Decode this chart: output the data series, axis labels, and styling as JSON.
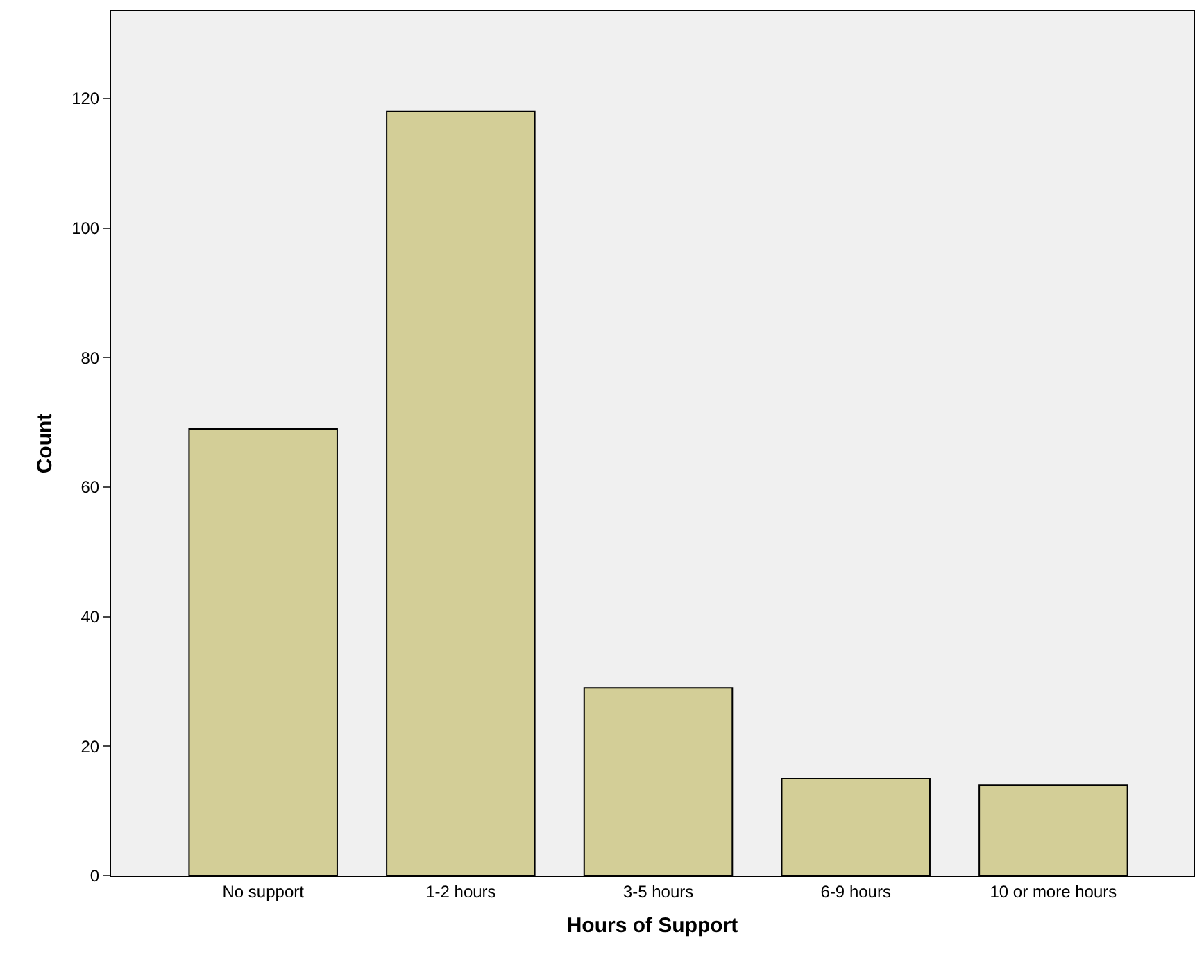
{
  "chart_data": {
    "type": "bar",
    "xlabel": "Hours of Support",
    "ylabel": "Count",
    "categories": [
      "No support",
      "1-2 hours",
      "3-5 hours",
      "6-9 hours",
      "10 or more hours"
    ],
    "values": [
      69,
      118,
      29,
      15,
      14
    ],
    "color": "#d3ce97",
    "ylim": [
      0,
      133.5
    ],
    "yticks": [
      0,
      20,
      40,
      60,
      80,
      100,
      120
    ],
    "grid": false
  }
}
